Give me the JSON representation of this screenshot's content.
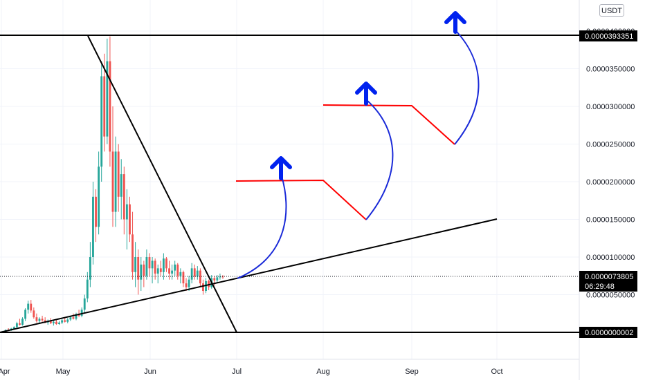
{
  "currency_label": "USDT",
  "chart_data": {
    "type": "candlestick",
    "x_ticks": [
      "Apr",
      "May",
      "Jun",
      "Jul",
      "Aug",
      "Sep",
      "Oct"
    ],
    "y_ticks": [
      "0.0000400000",
      "0.0000350000",
      "0.0000300000",
      "0.0000250000",
      "0.0000200000",
      "0.0000150000",
      "0.0000100000",
      "0.0000050000"
    ],
    "ylim": [
      -2.5e-06,
      4.18e-05
    ],
    "grid": true,
    "price_tags": [
      {
        "label": "0.0000393351",
        "value": 3.93351e-05,
        "style": "black"
      },
      {
        "label": "0.0000073805",
        "value": 7.3805e-06,
        "style": "black",
        "sub": "06:29:48"
      },
      {
        "label": "0.0000000002",
        "value": 2e-10,
        "style": "black"
      }
    ],
    "last_price": 7.3805e-06,
    "countdown": "06:29:48",
    "colors": {
      "up": "#26a69a",
      "down": "#ef5350",
      "trendline": "#000000",
      "projection": "#ff0000",
      "arc": "#0000cc",
      "arrow": "#0022ee"
    },
    "candles": [
      [
        5e-08,
        2e-07,
        0.0,
        1.5e-07
      ],
      [
        1.5e-07,
        4e-07,
        1e-07,
        3e-07
      ],
      [
        3e-07,
        5.5e-07,
        2e-07,
        2.5e-07
      ],
      [
        2.5e-07,
        6e-07,
        2e-07,
        5e-07
      ],
      [
        5e-07,
        8e-07,
        4e-07,
        7e-07
      ],
      [
        7e-07,
        1.4e-06,
        6e-07,
        1.2e-06
      ],
      [
        1.2e-06,
        1.8e-06,
        9e-07,
        1e-06
      ],
      [
        1e-06,
        2e-06,
        9e-07,
        1.8e-06
      ],
      [
        1.8e-06,
        3.2e-06,
        1.5e-06,
        3e-06
      ],
      [
        3e-06,
        4.2e-06,
        2.5e-06,
        3.8e-06
      ],
      [
        3.8e-06,
        4.3e-06,
        2.6e-06,
        2.9e-06
      ],
      [
        2.9e-06,
        3.3e-06,
        1.8e-06,
        2e-06
      ],
      [
        2e-06,
        2.5e-06,
        1.3e-06,
        1.5e-06
      ],
      [
        1.5e-06,
        2e-06,
        1.2e-06,
        1.8e-06
      ],
      [
        1.8e-06,
        2.2e-06,
        1.4e-06,
        1.6e-06
      ],
      [
        1.6e-06,
        2e-06,
        1.2e-06,
        1.3e-06
      ],
      [
        1.3e-06,
        1.7e-06,
        1e-06,
        1.5e-06
      ],
      [
        1.5e-06,
        1.9e-06,
        1.1e-06,
        1.2e-06
      ],
      [
        1.2e-06,
        1.6e-06,
        9e-07,
        1.4e-06
      ],
      [
        1.4e-06,
        1.7e-06,
        1e-06,
        1.1e-06
      ],
      [
        1.1e-06,
        1.5e-06,
        1e-06,
        1.3e-06
      ],
      [
        1.3e-06,
        1.8e-06,
        1.1e-06,
        1.6e-06
      ],
      [
        1.6e-06,
        2e-06,
        1.3e-06,
        1.4e-06
      ],
      [
        1.4e-06,
        1.9e-06,
        1.2e-06,
        1.7e-06
      ],
      [
        1.7e-06,
        2.2e-06,
        1.5e-06,
        2e-06
      ],
      [
        2e-06,
        2.5e-06,
        1.7e-06,
        1.8e-06
      ],
      [
        1.8e-06,
        2.6e-06,
        1.6e-06,
        2.4e-06
      ],
      [
        2.4e-06,
        3e-06,
        2e-06,
        2.2e-06
      ],
      [
        2.2e-06,
        3.3e-06,
        2e-06,
        3e-06
      ],
      [
        3e-06,
        5e-06,
        2.5e-06,
        4.5e-06
      ],
      [
        4.5e-06,
        8e-06,
        4e-06,
        7e-06
      ],
      [
        7e-06,
        1.2e-05,
        6e-06,
        1e-05
      ],
      [
        1e-05,
        2e-05,
        9e-06,
        1.8e-05
      ],
      [
        1.8e-05,
        1.9e-05,
        1.2e-05,
        1.4e-05
      ],
      [
        1.4e-05,
        2.4e-05,
        1.3e-05,
        2.2e-05
      ],
      [
        2.2e-05,
        3.6e-05,
        2e-05,
        3.4e-05
      ],
      [
        3.4e-05,
        3.7e-05,
        2.4e-05,
        2.6e-05
      ],
      [
        2.6e-05,
        3.9e-05,
        2.5e-05,
        3.6e-05
      ],
      [
        3.6e-05,
        3.93e-05,
        2.2e-05,
        2.4e-05
      ],
      [
        2.4e-05,
        3e-05,
        1.4e-05,
        1.6e-05
      ],
      [
        1.6e-05,
        2.6e-05,
        1.4e-05,
        2.4e-05
      ],
      [
        2.4e-05,
        2.5e-05,
        1.6e-05,
        1.8e-05
      ],
      [
        1.8e-05,
        2.3e-05,
        1.5e-05,
        2.1e-05
      ],
      [
        2.1e-05,
        2.2e-05,
        1.3e-05,
        1.5e-05
      ],
      [
        1.5e-05,
        1.9e-05,
        1.1e-05,
        1.7e-05
      ],
      [
        1.7e-05,
        1.8e-05,
        1.2e-05,
        1.3e-05
      ],
      [
        1.3e-05,
        1.6e-05,
        7e-06,
        8e-06
      ],
      [
        8e-06,
        1.2e-05,
        6e-06,
        1e-05
      ],
      [
        1e-05,
        1.1e-05,
        5e-06,
        7e-06
      ],
      [
        7e-06,
        1e-05,
        5.5e-06,
        9e-06
      ],
      [
        9e-06,
        9.5e-06,
        6e-06,
        7.5e-06
      ],
      [
        7.5e-06,
        1.1e-05,
        7e-06,
        1e-05
      ],
      [
        1e-05,
        1.05e-05,
        7.5e-06,
        8.5e-06
      ],
      [
        8.5e-06,
        1e-05,
        6.5e-06,
        9.5e-06
      ],
      [
        9.5e-06,
        9.8e-06,
        7e-06,
        7.8e-06
      ],
      [
        7.8e-06,
        9e-06,
        6.5e-06,
        8.5e-06
      ],
      [
        8.5e-06,
        9.5e-06,
        7.5e-06,
        8e-06
      ],
      [
        8e-06,
        1.05e-05,
        7e-06,
        9.8e-06
      ],
      [
        9.8e-06,
        1e-05,
        8e-06,
        8.5e-06
      ],
      [
        8.5e-06,
        9.5e-06,
        7e-06,
        7.8e-06
      ],
      [
        7.8e-06,
        9e-06,
        7e-06,
        8.2e-06
      ],
      [
        8.2e-06,
        9.5e-06,
        7.5e-06,
        9e-06
      ],
      [
        9e-06,
        9.2e-06,
        7e-06,
        7.5e-06
      ],
      [
        7.5e-06,
        8.5e-06,
        6.5e-06,
        8e-06
      ],
      [
        8e-06,
        8.2e-06,
        6e-06,
        6.5e-06
      ],
      [
        6.5e-06,
        7.2e-06,
        5.5e-06,
        6e-06
      ],
      [
        6e-06,
        7.5e-06,
        5.5e-06,
        7e-06
      ],
      [
        7e-06,
        9.2e-06,
        6.5e-06,
        8.5e-06
      ],
      [
        8.5e-06,
        9e-06,
        7e-06,
        7.4e-06
      ],
      [
        7.4e-06,
        8.8e-06,
        7e-06,
        8.2e-06
      ],
      [
        8.2e-06,
        8.5e-06,
        6e-06,
        6.5e-06
      ],
      [
        6.5e-06,
        7e-06,
        5e-06,
        5.5e-06
      ],
      [
        5.5e-06,
        7.2e-06,
        5.2e-06,
        6.8e-06
      ],
      [
        6.8e-06,
        7e-06,
        5.6e-06,
        6e-06
      ],
      [
        6e-06,
        7.6e-06,
        5.8e-06,
        7.2e-06
      ],
      [
        7.2e-06,
        7.5e-06,
        6.2e-06,
        6.9e-06
      ],
      [
        6.9e-06,
        7.6e-06,
        6.6e-06,
        7.3e-06
      ],
      [
        7.3e-06,
        7.8e-06,
        7e-06,
        7.4e-06
      ],
      [
        7.4e-06,
        7.6e-06,
        7.1e-06,
        7.38e-06
      ]
    ]
  }
}
